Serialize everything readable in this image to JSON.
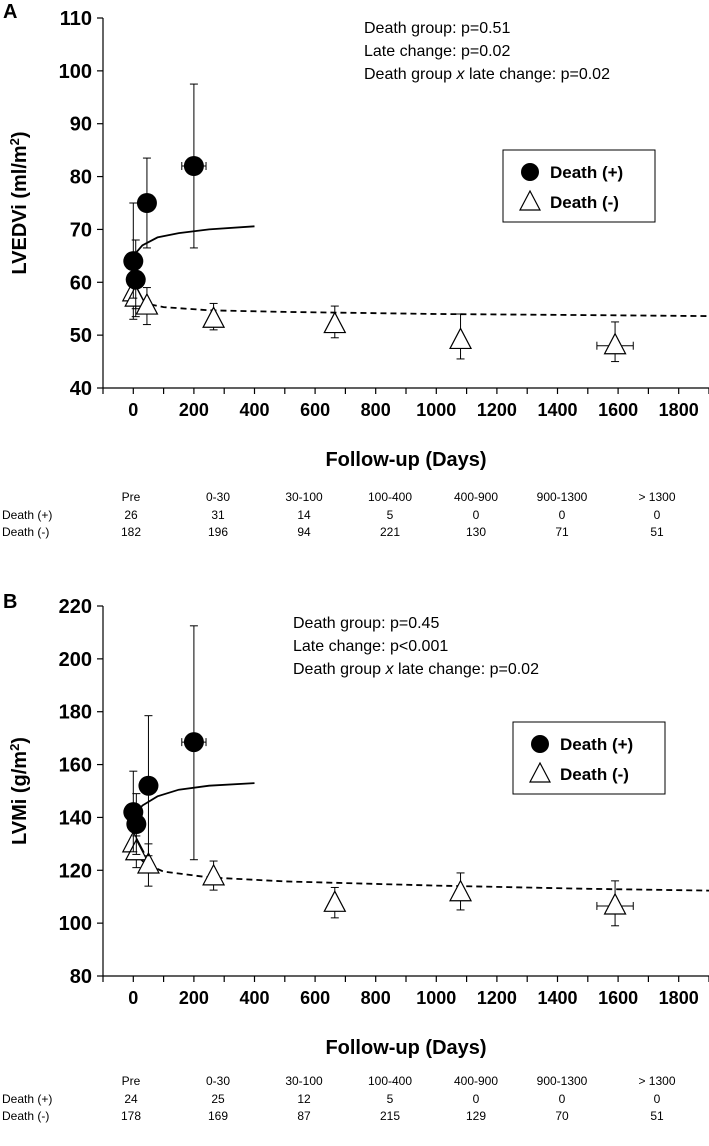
{
  "chart_data": [
    {
      "type": "scatter",
      "panel_label": "A",
      "ylabel": "LVEDVi (ml/m²)",
      "ylabel_main": "LVEDVi (ml/m",
      "ylabel_sup": "2",
      "ylabel_end": ")",
      "xlabel": "Follow-up (Days)",
      "ylim": [
        40,
        110
      ],
      "yticks": [
        "40",
        "50",
        "60",
        "70",
        "80",
        "90",
        "100",
        "110"
      ],
      "xlim": [
        -100,
        1900
      ],
      "xticks": [
        "0",
        "200",
        "400",
        "600",
        "800",
        "1000",
        "1200",
        "1400",
        "1600",
        "1800"
      ],
      "stats": [
        {
          "text": "Death group: p=0.51"
        },
        {
          "text": "Late change: p=0.02"
        },
        {
          "pre": "Death group ",
          "ital": "x",
          "post": " late change: p=0.02"
        }
      ],
      "legend": [
        {
          "label": "Death (+)",
          "marker": "circle"
        },
        {
          "label": "Death (-)",
          "marker": "triangle"
        }
      ],
      "series": [
        {
          "name": "Death (+)",
          "marker": "circle",
          "points": [
            {
              "x": 0,
              "y": 64.0,
              "lo": 57.0,
              "hi": 75.0
            },
            {
              "x": 8,
              "y": 60.5,
              "lo": 55.0,
              "hi": 68.0
            },
            {
              "x": 45,
              "y": 75.0,
              "lo": 66.5,
              "hi": 83.5
            },
            {
              "x": 200,
              "y": 82.0,
              "lo": 66.5,
              "hi": 97.5,
              "xerr": 40
            }
          ],
          "fit": [
            [
              0,
              65.0
            ],
            [
              30,
              67.0
            ],
            [
              80,
              68.5
            ],
            [
              150,
              69.3
            ],
            [
              250,
              70.0
            ],
            [
              400,
              70.6
            ]
          ]
        },
        {
          "name": "Death (-)",
          "marker": "triangle",
          "points": [
            {
              "x": 0,
              "y": 58.0,
              "lo": 53.0,
              "hi": 63.0
            },
            {
              "x": 8,
              "y": 57.0,
              "lo": 53.5,
              "hi": 60.5
            },
            {
              "x": 45,
              "y": 55.5,
              "lo": 52.0,
              "hi": 59.0
            },
            {
              "x": 265,
              "y": 53.0,
              "lo": 51.0,
              "hi": 56.0
            },
            {
              "x": 665,
              "y": 52.0,
              "lo": 49.5,
              "hi": 55.5
            },
            {
              "x": 1080,
              "y": 49.0,
              "lo": 45.5,
              "hi": 54.0
            },
            {
              "x": 1590,
              "y": 48.0,
              "lo": 45.0,
              "hi": 52.5,
              "xerr": 60
            }
          ],
          "fit": [
            [
              0,
              57.5
            ],
            [
              40,
              56.0
            ],
            [
              100,
              55.3
            ],
            [
              250,
              54.7
            ],
            [
              500,
              54.4
            ],
            [
              1000,
              54.0
            ],
            [
              1500,
              53.8
            ],
            [
              1900,
              53.6
            ]
          ]
        }
      ],
      "table": {
        "columns": [
          "Pre",
          "0-30",
          "30-100",
          "100-400",
          "400-900",
          "900-1300",
          "> 1300"
        ],
        "rows": [
          {
            "label": "Death (+)",
            "values": [
              "26",
              "31",
              "14",
              "5",
              "0",
              "0",
              "0"
            ]
          },
          {
            "label": "Death (-)",
            "values": [
              "182",
              "196",
              "94",
              "221",
              "130",
              "71",
              "51"
            ]
          }
        ]
      }
    },
    {
      "type": "scatter",
      "panel_label": "B",
      "ylabel": "LVMi (g/m²)",
      "ylabel_main": "LVMi (g/m",
      "ylabel_sup": "2",
      "ylabel_end": ")",
      "xlabel": "Follow-up (Days)",
      "ylim": [
        80,
        220
      ],
      "yticks": [
        "80",
        "100",
        "120",
        "140",
        "160",
        "180",
        "200",
        "220"
      ],
      "xlim": [
        -100,
        1900
      ],
      "xticks": [
        "0",
        "200",
        "400",
        "600",
        "800",
        "1000",
        "1200",
        "1400",
        "1600",
        "1800"
      ],
      "stats": [
        {
          "text": "Death group: p=0.45"
        },
        {
          "text": "Late change: p<0.001"
        },
        {
          "pre": "Death group ",
          "ital": "x",
          "post": " late change: p=0.02"
        }
      ],
      "legend": [
        {
          "label": "Death (+)",
          "marker": "circle"
        },
        {
          "label": "Death (-)",
          "marker": "triangle"
        }
      ],
      "series": [
        {
          "name": "Death (+)",
          "marker": "circle",
          "points": [
            {
              "x": 0,
              "y": 142.0,
              "lo": 127.0,
              "hi": 157.5
            },
            {
              "x": 10,
              "y": 137.5,
              "lo": 126.0,
              "hi": 149.0
            },
            {
              "x": 50,
              "y": 152.0,
              "lo": 125.5,
              "hi": 178.5
            },
            {
              "x": 200,
              "y": 168.5,
              "lo": 124.0,
              "hi": 212.5,
              "xerr": 40
            }
          ],
          "fit": [
            [
              0,
              140.0
            ],
            [
              30,
              144.5
            ],
            [
              80,
              148.0
            ],
            [
              150,
              150.5
            ],
            [
              250,
              152.0
            ],
            [
              400,
              153.0
            ]
          ]
        },
        {
          "name": "Death (-)",
          "marker": "triangle",
          "points": [
            {
              "x": 0,
              "y": 130.0,
              "lo": 124.0,
              "hi": 136.0
            },
            {
              "x": 10,
              "y": 127.0,
              "lo": 121.0,
              "hi": 133.0
            },
            {
              "x": 50,
              "y": 122.0,
              "lo": 114.0,
              "hi": 130.0
            },
            {
              "x": 265,
              "y": 117.5,
              "lo": 112.5,
              "hi": 123.5
            },
            {
              "x": 665,
              "y": 107.5,
              "lo": 102.0,
              "hi": 113.5
            },
            {
              "x": 1080,
              "y": 111.5,
              "lo": 105.0,
              "hi": 119.0
            },
            {
              "x": 1590,
              "y": 106.5,
              "lo": 99.0,
              "hi": 116.0,
              "xerr": 60
            }
          ],
          "fit": [
            [
              0,
              127.0
            ],
            [
              40,
              122.5
            ],
            [
              100,
              119.5
            ],
            [
              250,
              117.3
            ],
            [
              500,
              115.8
            ],
            [
              1000,
              114.2
            ],
            [
              1500,
              113.0
            ],
            [
              1900,
              112.3
            ]
          ]
        }
      ],
      "table": {
        "columns": [
          "Pre",
          "0-30",
          "30-100",
          "100-400",
          "400-900",
          "900-1300",
          "> 1300"
        ],
        "rows": [
          {
            "label": "Death (+)",
            "values": [
              "24",
              "25",
              "12",
              "5",
              "0",
              "0",
              "0"
            ]
          },
          {
            "label": "Death (-)",
            "values": [
              "178",
              "169",
              "87",
              "215",
              "129",
              "70",
              "51"
            ]
          }
        ]
      }
    }
  ]
}
